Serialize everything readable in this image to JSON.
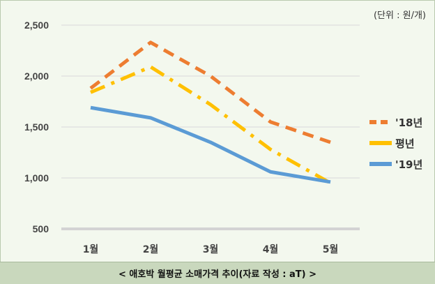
{
  "unit_label": "(단위 : 원/개)",
  "caption": "< 애호박 월평균 소매가격 추이(자료 작성 : aT) >",
  "chart_data": {
    "type": "line",
    "title": "",
    "xlabel": "",
    "ylabel": "",
    "categories": [
      "1월",
      "2월",
      "3월",
      "4월",
      "5월"
    ],
    "ylim": [
      500,
      2500
    ],
    "yticks": [
      500,
      1000,
      1500,
      2000,
      2500
    ],
    "ytick_labels": [
      "500",
      "1,000",
      "1,500",
      "2,000",
      "2,500"
    ],
    "grid": true,
    "legend": "right",
    "series": [
      {
        "name": "'18년",
        "values": [
          1880,
          2330,
          2000,
          1550,
          1350
        ],
        "color": "#ed7d31",
        "style": "dashed"
      },
      {
        "name": "평년",
        "values": [
          1840,
          2090,
          1720,
          1280,
          950
        ],
        "color": "#ffc000",
        "style": "dashdot"
      },
      {
        "name": "'19년",
        "values": [
          1690,
          1590,
          1350,
          1060,
          960
        ],
        "color": "#5b9bd5",
        "style": "solid"
      }
    ]
  }
}
